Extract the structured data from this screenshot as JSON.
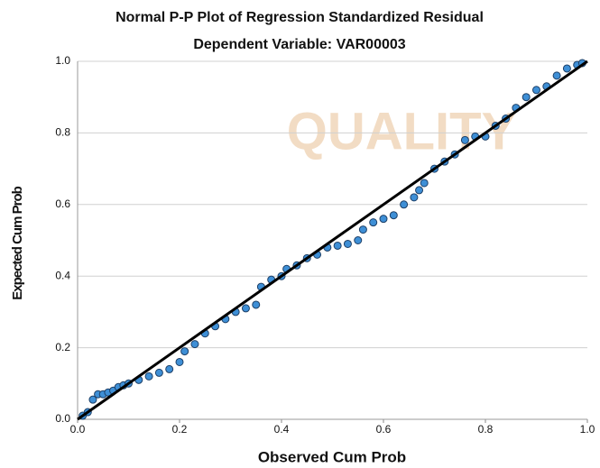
{
  "chart_data": {
    "type": "scatter",
    "title": "Normal P-P Plot of Regression Standardized Residual",
    "subtitle": "Dependent Variable: VAR00003",
    "xlabel": "Observed Cum Prob",
    "ylabel": "Expected Cum Prob",
    "watermark": "QUALITY",
    "x": [
      0.01,
      0.02,
      0.03,
      0.04,
      0.05,
      0.06,
      0.07,
      0.08,
      0.09,
      0.1,
      0.12,
      0.14,
      0.16,
      0.18,
      0.2,
      0.21,
      0.23,
      0.25,
      0.27,
      0.29,
      0.31,
      0.33,
      0.35,
      0.36,
      0.38,
      0.4,
      0.41,
      0.43,
      0.45,
      0.47,
      0.49,
      0.51,
      0.53,
      0.55,
      0.56,
      0.58,
      0.6,
      0.62,
      0.64,
      0.66,
      0.67,
      0.68,
      0.7,
      0.72,
      0.74,
      0.76,
      0.78,
      0.8,
      0.82,
      0.84,
      0.86,
      0.88,
      0.9,
      0.92,
      0.94,
      0.96,
      0.98,
      0.99
    ],
    "values": [
      0.01,
      0.02,
      0.055,
      0.07,
      0.07,
      0.075,
      0.08,
      0.09,
      0.095,
      0.1,
      0.11,
      0.12,
      0.13,
      0.14,
      0.16,
      0.19,
      0.21,
      0.24,
      0.26,
      0.28,
      0.3,
      0.31,
      0.32,
      0.37,
      0.39,
      0.4,
      0.42,
      0.43,
      0.45,
      0.46,
      0.48,
      0.485,
      0.49,
      0.5,
      0.53,
      0.55,
      0.56,
      0.57,
      0.6,
      0.62,
      0.64,
      0.66,
      0.7,
      0.72,
      0.74,
      0.78,
      0.79,
      0.79,
      0.82,
      0.84,
      0.87,
      0.9,
      0.92,
      0.93,
      0.96,
      0.98,
      0.99,
      0.995
    ],
    "color": "#3e8fd6",
    "xlim": [
      0,
      1
    ],
    "ylim": [
      0,
      1
    ],
    "xticks": [
      {
        "value": 0,
        "label": "0.0"
      },
      0.2,
      0.4,
      0.6,
      0.8,
      {
        "value": 1,
        "label": "1.0"
      }
    ],
    "yticks": [
      {
        "value": 0,
        "label": "0.0"
      },
      0.2,
      0.4,
      0.6,
      0.8,
      {
        "value": 1,
        "label": "1.0"
      }
    ],
    "grid": true,
    "reference_line": true
  }
}
